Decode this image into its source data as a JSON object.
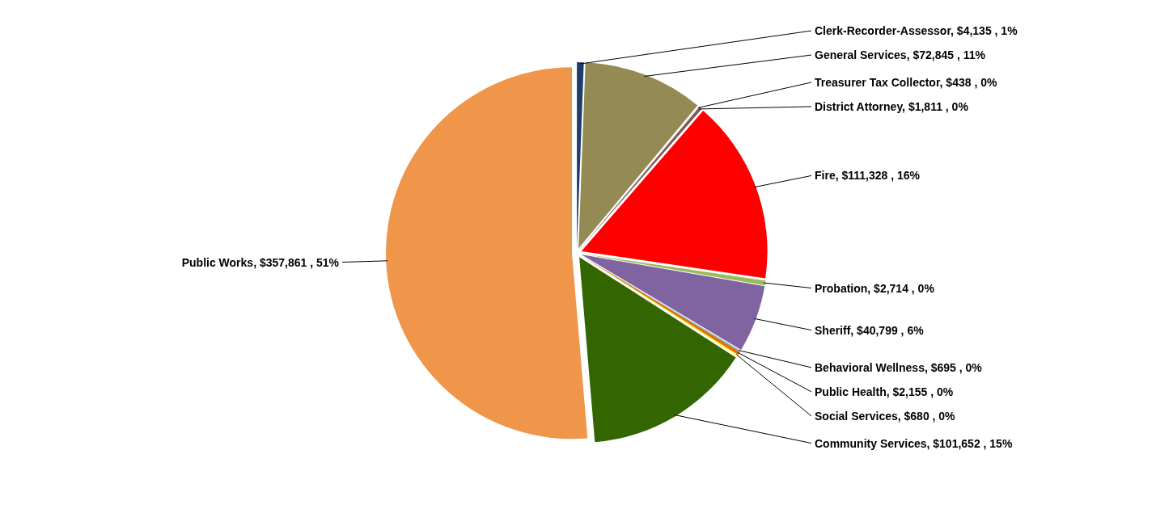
{
  "chart_data": {
    "type": "pie",
    "categories": [
      "Clerk-Recorder-Assessor",
      "General Services",
      "Treasurer Tax Collector",
      "District Attorney",
      "Fire",
      "Probation",
      "Sheriff",
      "Behavioral Wellness",
      "Public Health",
      "Social Services",
      "Community Services",
      "Public Works"
    ],
    "values": [
      4135,
      72845,
      438,
      1811,
      111328,
      2714,
      40799,
      695,
      2155,
      680,
      101652,
      357861
    ],
    "colors": [
      "#1f3d6b",
      "#948a54",
      "#f2dcdb",
      "#7a5a5a",
      "#ff0000",
      "#9bbb59",
      "#8064a2",
      "#4bacc6",
      "#e46c0a",
      "#ffff00",
      "#336600",
      "#f0964a"
    ],
    "value_labels": [
      ", $4,135 , 1%",
      ", $72,845 , 11%",
      ", $438 , 0%",
      ", $1,811 , 0%",
      ", $111,328 , 16%",
      ", $2,714 , 0%",
      ", $40,799 , 6%",
      ", $695 , 0%",
      ", $2,155 , 0%",
      ", $680 , 0%",
      ", $101,652 , 15%",
      ", $357,861 , 51%"
    ]
  }
}
